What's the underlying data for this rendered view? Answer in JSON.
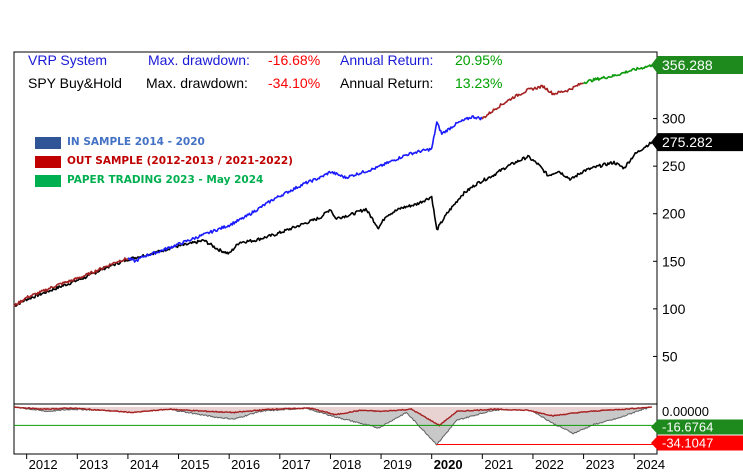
{
  "header": {
    "system_name": "VRP System",
    "system_dd_label": "Max. drawdown:",
    "system_dd_value": "-16.68%",
    "system_ret_label": "Annual Return:",
    "system_ret_value": "20.95%",
    "bench_name": "SPY Buy&Hold",
    "bench_dd_label": "Max. drawdown:",
    "bench_dd_value": "-34.10%",
    "bench_ret_label": "Annual Return:",
    "bench_ret_value": "13.23%"
  },
  "legend": [
    {
      "label": "IN SAMPLE 2014 - 2020",
      "color": "#2f5597",
      "text_color": "#4472c4"
    },
    {
      "label": "OUT SAMPLE (2012-2013 / 2021-2022)",
      "color": "#c00000",
      "text_color": "#c00000"
    },
    {
      "label": "PAPER TRADING 2023 - May 2024",
      "color": "#00b050",
      "text_color": "#00b050"
    }
  ],
  "colors": {
    "in_sample": "#1a1aff",
    "out_sample": "#a52020",
    "paper": "#0a9a0a",
    "benchmark": "#000000",
    "system_text": "#1a1ad6",
    "dd_label": "#1a1ad6",
    "dd_value": "#ff0000",
    "ret_value": "#00a000"
  },
  "chart_data": {
    "type": "line",
    "title": "",
    "xlabel": "",
    "ylabel": "",
    "ylim": [
      0,
      370
    ],
    "x_range": [
      2011.75,
      2024.45
    ],
    "y_ticks": [
      50,
      100,
      150,
      200,
      250,
      300
    ],
    "x_ticks": [
      "2012",
      "2013",
      "2014",
      "2015",
      "2016",
      "2017",
      "2018",
      "2019",
      "2020",
      "2021",
      "2022",
      "2023",
      "2024"
    ],
    "bold_x_tick": "2020",
    "series": [
      {
        "name": "VRP System",
        "last_value_label": "356.288",
        "points": [
          [
            2011.75,
            103
          ],
          [
            2012.0,
            112
          ],
          [
            2012.3,
            118
          ],
          [
            2012.6,
            125
          ],
          [
            2012.9,
            130
          ],
          [
            2013.2,
            136
          ],
          [
            2013.5,
            143
          ],
          [
            2013.8,
            150
          ],
          [
            2014.0,
            153
          ],
          [
            2014.15,
            150
          ],
          [
            2014.3,
            155
          ],
          [
            2014.6,
            160
          ],
          [
            2014.9,
            166
          ],
          [
            2015.2,
            172
          ],
          [
            2015.5,
            178
          ],
          [
            2015.8,
            184
          ],
          [
            2016.0,
            188
          ],
          [
            2016.3,
            196
          ],
          [
            2016.6,
            206
          ],
          [
            2016.9,
            216
          ],
          [
            2017.2,
            224
          ],
          [
            2017.5,
            232
          ],
          [
            2017.8,
            238
          ],
          [
            2018.0,
            244
          ],
          [
            2018.3,
            238
          ],
          [
            2018.6,
            243
          ],
          [
            2018.9,
            248
          ],
          [
            2019.2,
            255
          ],
          [
            2019.5,
            262
          ],
          [
            2019.8,
            266
          ],
          [
            2020.0,
            268
          ],
          [
            2020.1,
            296
          ],
          [
            2020.2,
            284
          ],
          [
            2020.5,
            295
          ],
          [
            2020.8,
            302
          ],
          [
            2021.0,
            300
          ],
          [
            2021.3,
            312
          ],
          [
            2021.6,
            322
          ],
          [
            2021.9,
            330
          ],
          [
            2022.2,
            334
          ],
          [
            2022.4,
            326
          ],
          [
            2022.7,
            330
          ],
          [
            2023.0,
            338
          ],
          [
            2023.3,
            342
          ],
          [
            2023.6,
            345
          ],
          [
            2023.9,
            350
          ],
          [
            2024.2,
            354
          ],
          [
            2024.35,
            356
          ]
        ],
        "segments": [
          {
            "phase": "out_sample",
            "from": 2011.75,
            "to": 2014.0
          },
          {
            "phase": "in_sample",
            "from": 2014.0,
            "to": 2021.0
          },
          {
            "phase": "out_sample",
            "from": 2021.0,
            "to": 2023.0
          },
          {
            "phase": "paper",
            "from": 2023.0,
            "to": 2024.35
          }
        ]
      },
      {
        "name": "SPY Buy&Hold",
        "last_value_label": "275.282",
        "points": [
          [
            2011.75,
            103
          ],
          [
            2012.0,
            110
          ],
          [
            2012.3,
            116
          ],
          [
            2012.6,
            122
          ],
          [
            2012.9,
            128
          ],
          [
            2013.2,
            134
          ],
          [
            2013.5,
            142
          ],
          [
            2013.8,
            148
          ],
          [
            2014.0,
            152
          ],
          [
            2014.3,
            156
          ],
          [
            2014.6,
            160
          ],
          [
            2014.9,
            165
          ],
          [
            2015.2,
            168
          ],
          [
            2015.5,
            172
          ],
          [
            2015.8,
            162
          ],
          [
            2016.0,
            158
          ],
          [
            2016.2,
            170
          ],
          [
            2016.5,
            172
          ],
          [
            2016.9,
            178
          ],
          [
            2017.2,
            184
          ],
          [
            2017.5,
            190
          ],
          [
            2017.8,
            196
          ],
          [
            2018.0,
            205
          ],
          [
            2018.1,
            195
          ],
          [
            2018.4,
            199
          ],
          [
            2018.7,
            205
          ],
          [
            2018.95,
            185
          ],
          [
            2019.1,
            198
          ],
          [
            2019.4,
            206
          ],
          [
            2019.7,
            210
          ],
          [
            2020.0,
            218
          ],
          [
            2020.1,
            183
          ],
          [
            2020.3,
            200
          ],
          [
            2020.6,
            220
          ],
          [
            2020.9,
            232
          ],
          [
            2021.2,
            240
          ],
          [
            2021.5,
            250
          ],
          [
            2021.9,
            260
          ],
          [
            2022.1,
            252
          ],
          [
            2022.3,
            240
          ],
          [
            2022.5,
            245
          ],
          [
            2022.75,
            236
          ],
          [
            2023.0,
            245
          ],
          [
            2023.3,
            250
          ],
          [
            2023.6,
            254
          ],
          [
            2023.8,
            248
          ],
          [
            2024.0,
            262
          ],
          [
            2024.2,
            270
          ],
          [
            2024.35,
            275
          ]
        ]
      }
    ],
    "drawdown_panel": {
      "labels": [
        "0.00000",
        "-16.6764",
        "-34.1047"
      ],
      "system_max_drawdown": -16.6764,
      "benchmark_max_drawdown": -34.1047,
      "system_drawdown": [
        [
          2011.75,
          0
        ],
        [
          2012.3,
          -2
        ],
        [
          2012.9,
          -1
        ],
        [
          2013.5,
          -3
        ],
        [
          2014.1,
          -5
        ],
        [
          2014.8,
          -2
        ],
        [
          2015.6,
          -4
        ],
        [
          2016.1,
          -5
        ],
        [
          2016.8,
          -2
        ],
        [
          2017.6,
          -1
        ],
        [
          2018.1,
          -7
        ],
        [
          2018.6,
          -3
        ],
        [
          2019.0,
          -4
        ],
        [
          2019.6,
          -2
        ],
        [
          2020.15,
          -16.7
        ],
        [
          2020.5,
          -4
        ],
        [
          2021.2,
          -2
        ],
        [
          2021.9,
          -3
        ],
        [
          2022.4,
          -8
        ],
        [
          2022.9,
          -5
        ],
        [
          2023.4,
          -3
        ],
        [
          2023.8,
          -2
        ],
        [
          2024.35,
          0
        ]
      ],
      "benchmark_drawdown": [
        [
          2011.75,
          0
        ],
        [
          2012.4,
          -4
        ],
        [
          2012.9,
          -2
        ],
        [
          2013.6,
          -3
        ],
        [
          2014.1,
          -4
        ],
        [
          2014.8,
          -2
        ],
        [
          2015.7,
          -9
        ],
        [
          2016.1,
          -11
        ],
        [
          2016.6,
          -4
        ],
        [
          2017.5,
          -1
        ],
        [
          2018.1,
          -9
        ],
        [
          2018.95,
          -19
        ],
        [
          2019.5,
          -5
        ],
        [
          2020.1,
          -34.1
        ],
        [
          2020.5,
          -12
        ],
        [
          2021.2,
          -3
        ],
        [
          2021.9,
          -1
        ],
        [
          2022.4,
          -15
        ],
        [
          2022.8,
          -24
        ],
        [
          2023.2,
          -16
        ],
        [
          2023.7,
          -10
        ],
        [
          2024.1,
          -3
        ],
        [
          2024.35,
          0
        ]
      ]
    }
  }
}
